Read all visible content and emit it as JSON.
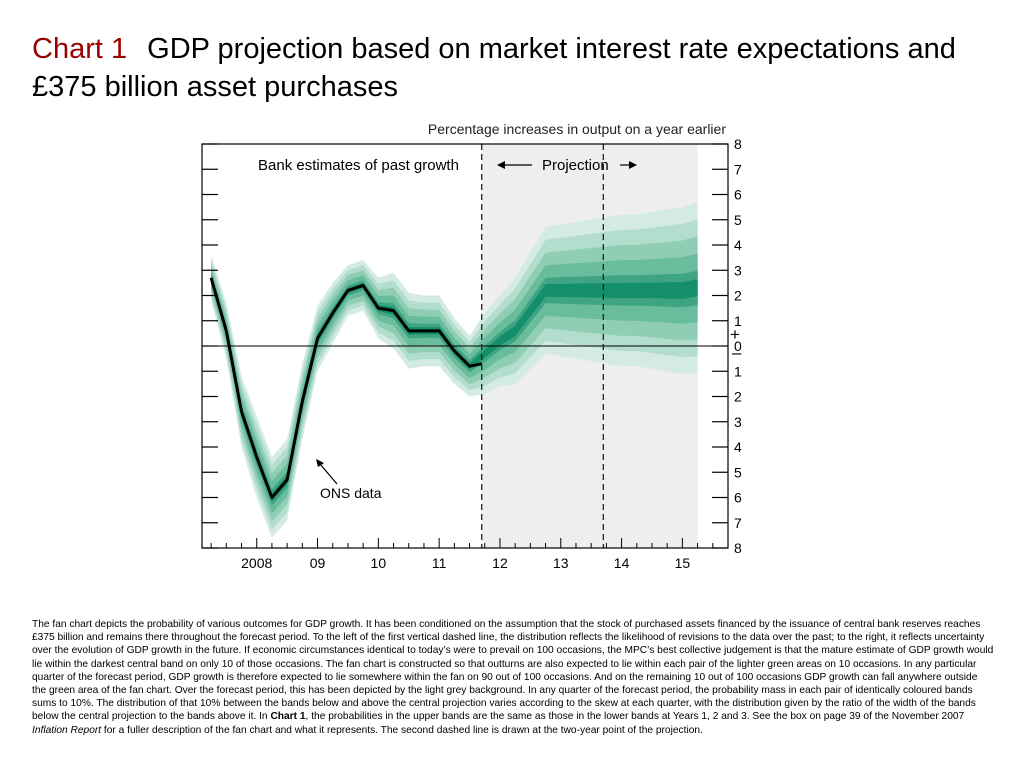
{
  "title": {
    "chart_number": "Chart 1",
    "text": "GDP projection based on market interest rate expectations and £375 billion asset purchases"
  },
  "chart_data": {
    "type": "area",
    "subtitle": "Percentage increases in output on a year earlier",
    "x_tick_labels": [
      "2008",
      "09",
      "10",
      "11",
      "12",
      "13",
      "14",
      "15"
    ],
    "x_tick_positions": [
      2008.0,
      2009.0,
      2010.0,
      2011.0,
      2012.0,
      2013.0,
      2014.0,
      2015.0
    ],
    "xlim": [
      2007.1,
      2015.75
    ],
    "ylim": [
      -8,
      8
    ],
    "y_tick_labels": [
      "8",
      "7",
      "6",
      "5",
      "4",
      "3",
      "2",
      "1",
      "0",
      "1",
      "2",
      "3",
      "4",
      "5",
      "6",
      "7",
      "8"
    ],
    "y_tick_values": [
      8,
      7,
      6,
      5,
      4,
      3,
      2,
      1,
      0,
      -1,
      -2,
      -3,
      -4,
      -5,
      -6,
      -7,
      -8
    ],
    "sign_markers": [
      "+",
      "–"
    ],
    "vertical_dashed_lines": [
      2011.7,
      2013.7
    ],
    "projection_region": [
      2011.7,
      2015.25
    ],
    "annotations": {
      "past_growth": "Bank estimates of past growth",
      "projection": "Projection",
      "ons_data": "ONS data"
    },
    "series": [
      {
        "name": "ONS data",
        "x": [
          2007.25,
          2007.5,
          2007.75,
          2008.0,
          2008.25,
          2008.5,
          2008.75,
          2009.0,
          2009.25,
          2009.5,
          2009.75,
          2010.0,
          2010.25,
          2010.5,
          2010.75,
          2011.0,
          2011.25,
          2011.5,
          2011.7
        ],
        "values": [
          2.7,
          0.6,
          -2.6,
          -4.4,
          -6.0,
          -5.3,
          -2.2,
          0.3,
          1.3,
          2.2,
          2.4,
          1.5,
          1.4,
          0.6,
          0.6,
          0.6,
          -0.2,
          -0.8,
          -0.7
        ]
      }
    ],
    "fan_center": {
      "x": [
        2007.25,
        2007.5,
        2007.75,
        2008.0,
        2008.25,
        2008.5,
        2008.75,
        2009.0,
        2009.25,
        2009.5,
        2009.75,
        2010.0,
        2010.25,
        2010.5,
        2010.75,
        2011.0,
        2011.25,
        2011.5,
        2011.75,
        2012.0,
        2012.25,
        2012.5,
        2012.75,
        2013.0,
        2013.25,
        2013.5,
        2013.75,
        2014.0,
        2014.25,
        2014.5,
        2014.75,
        2015.0,
        2015.25
      ],
      "values": [
        2.7,
        0.6,
        -2.6,
        -4.4,
        -6.0,
        -5.3,
        -2.2,
        0.3,
        1.3,
        2.2,
        2.4,
        1.5,
        1.4,
        0.6,
        0.6,
        0.6,
        -0.2,
        -0.8,
        -0.3,
        0.2,
        0.6,
        1.4,
        2.2,
        2.2,
        2.2,
        2.2,
        2.2,
        2.2,
        2.2,
        2.2,
        2.2,
        2.2,
        2.3
      ]
    },
    "fan_halfwidth_90pct": [
      0.9,
      1.1,
      1.4,
      1.6,
      1.6,
      1.6,
      1.5,
      1.3,
      1.2,
      1.0,
      1.0,
      1.2,
      1.5,
      1.5,
      1.4,
      1.4,
      1.3,
      1.2,
      1.6,
      1.8,
      2.1,
      2.3,
      2.5,
      2.6,
      2.7,
      2.8,
      2.9,
      3.0,
      3.0,
      3.1,
      3.2,
      3.3,
      3.4
    ],
    "band_colors": [
      "#d3ebe2",
      "#b3ddcd",
      "#8fcdb5",
      "#69bc9c",
      "#3ea482"
    ],
    "center_band_color": "#138f6b",
    "projection_shade": "#eeeeee"
  },
  "caption": {
    "part1": "The fan chart depicts the probability of various outcomes for GDP growth.  It has been conditioned on the assumption that the stock of purchased assets financed by the issuance of central bank reserves reaches £375 billion and remains there throughout the forecast period.  To the left of the first vertical dashed line, the distribution reflects the likelihood of revisions to the data over the past;  to the right, it reflects uncertainty over the evolution of GDP growth in the future.  If economic circumstances identical to today’s were to prevail on 100 occasions, the MPC’s best collective judgement is that the mature estimate of GDP growth would lie within the darkest central band on only 10 of those occasions.  The fan chart is constructed so that outturns are also expected to lie within each pair of the lighter green areas on 10 occasions.  In any particular quarter of the forecast period, GDP growth is therefore expected to lie somewhere within the fan on 90 out of 100 occasions.  And on the remaining 10 out of 100 occasions GDP growth can fall anywhere outside the green area of the fan chart.  Over the forecast period, this has been depicted by the light grey background.  In any quarter of the forecast period, the probability mass in each pair of identically coloured bands sums to 10%.  The distribution of that 10% between the bands below and above the central projection varies according to the skew at each quarter, with the distribution given by the ratio of the width of the bands below the central projection to the bands above it.  In ",
    "bold": "Chart 1",
    "part2": ", the probabilities in the upper bands are the same as those in the lower bands at Years 1, 2 and 3.  See the box on page 39 of the November 2007 ",
    "italic": "Inflation Report",
    "part3": " for a fuller description of the fan chart and what it represents.  The second dashed line is drawn at the two-year point of the projection."
  }
}
